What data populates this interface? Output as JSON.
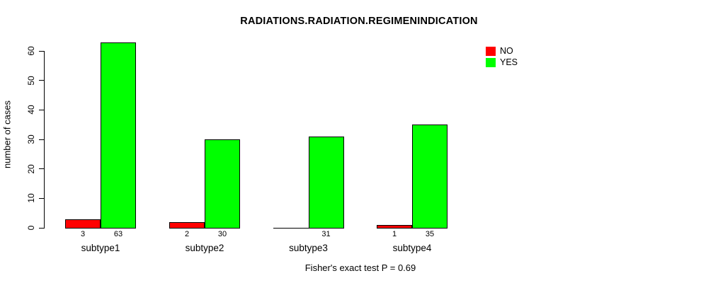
{
  "chart_data": {
    "type": "bar",
    "title": "RADIATIONS.RADIATION.REGIMENINDICATION",
    "ylabel": "number of cases",
    "xlabel": "",
    "categories": [
      "subtype1",
      "subtype2",
      "subtype3",
      "subtype4"
    ],
    "series": [
      {
        "name": "NO",
        "color": "#ff0000",
        "values": [
          3,
          2,
          0,
          1
        ]
      },
      {
        "name": "YES",
        "color": "#00ff00",
        "values": [
          63,
          30,
          31,
          35
        ]
      }
    ],
    "bar_count_labels": [
      [
        "3",
        "63"
      ],
      [
        "2",
        "30"
      ],
      [
        "",
        "31"
      ],
      [
        "1",
        "35"
      ]
    ],
    "ylim": [
      0,
      60
    ],
    "yticks": [
      0,
      10,
      20,
      30,
      40,
      50,
      60
    ],
    "grid": false,
    "legend_position": "top-right",
    "annotation": "Fisher's exact test P = 0.69"
  },
  "colors": {
    "background": "#ffffff",
    "axis": "#000000",
    "bar_border": "#000000",
    "text": "#000000"
  }
}
